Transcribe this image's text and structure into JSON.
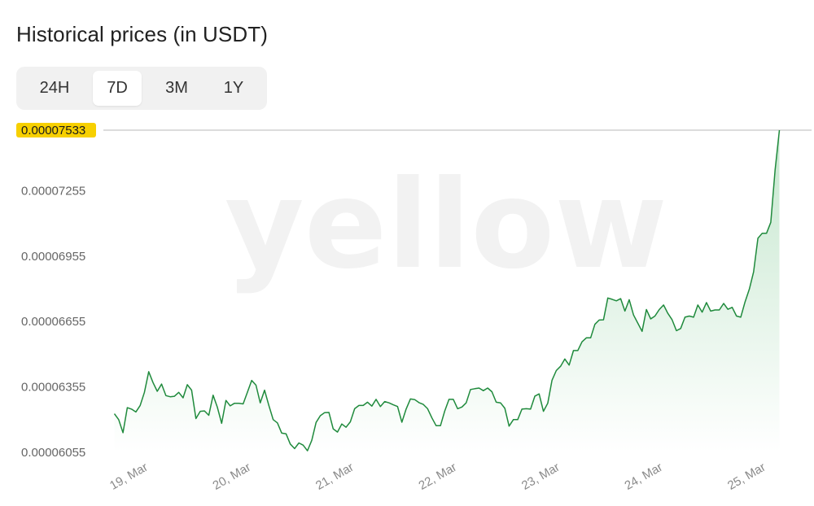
{
  "header": {
    "title": "Historical prices (in USDT)"
  },
  "tabs": [
    {
      "label": "24H",
      "active": false
    },
    {
      "label": "7D",
      "active": true
    },
    {
      "label": "3M",
      "active": false
    },
    {
      "label": "1Y",
      "active": false
    }
  ],
  "colors": {
    "line": "#1f8a3c",
    "fill": "#2fa84f",
    "badge": "#f7d000",
    "watermark": "#f2f2f2"
  },
  "watermark_text": "yellow",
  "chart_data": {
    "type": "area",
    "title": "Historical prices (in USDT)",
    "xlabel": "",
    "ylabel": "",
    "y_ticks": [
      "0.00007255",
      "0.00006955",
      "0.00006655",
      "0.00006355",
      "0.00006055"
    ],
    "x_ticks": [
      {
        "label": "19, Mar",
        "x": 0
      },
      {
        "label": "20, Mar",
        "x": 24
      },
      {
        "label": "21, Mar",
        "x": 48
      },
      {
        "label": "22, Mar",
        "x": 72
      },
      {
        "label": "23, Mar",
        "x": 96
      },
      {
        "label": "24, Mar",
        "x": 120
      },
      {
        "label": "25, Mar",
        "x": 144
      }
    ],
    "ylim": [
      6.055e-05,
      7.533e-05
    ],
    "xlim": [
      -2,
      162.5
    ],
    "current_value": "0.00007533",
    "series": [
      {
        "values": [
          6.232e-05,
          6.205e-05,
          6.145e-05,
          6.26e-05,
          6.253e-05,
          6.24e-05,
          6.27e-05,
          6.33e-05,
          6.425e-05,
          6.375e-05,
          6.335e-05,
          6.368e-05,
          6.315e-05,
          6.31e-05,
          6.312e-05,
          6.33e-05,
          6.305e-05,
          6.365e-05,
          6.34e-05,
          6.21e-05,
          6.243e-05,
          6.245e-05,
          6.225e-05,
          6.317e-05,
          6.262e-05,
          6.188e-05,
          6.293e-05,
          6.268e-05,
          6.28e-05,
          6.28e-05,
          6.277e-05,
          6.33e-05,
          6.385e-05,
          6.363e-05,
          6.282e-05,
          6.34e-05,
          6.27e-05,
          6.205e-05,
          6.19e-05,
          6.143e-05,
          6.14e-05,
          6.093e-05,
          6.072e-05,
          6.098e-05,
          6.088e-05,
          6.062e-05,
          6.11e-05,
          6.192e-05,
          6.223e-05,
          6.237e-05,
          6.238e-05,
          6.163e-05,
          6.148e-05,
          6.185e-05,
          6.17e-05,
          6.195e-05,
          6.255e-05,
          6.27e-05,
          6.27e-05,
          6.285e-05,
          6.267e-05,
          6.298e-05,
          6.265e-05,
          6.288e-05,
          6.282e-05,
          6.273e-05,
          6.265e-05,
          6.193e-05,
          6.253e-05,
          6.3e-05,
          6.297e-05,
          6.283e-05,
          6.275e-05,
          6.255e-05,
          6.213e-05,
          6.177e-05,
          6.177e-05,
          6.245e-05,
          6.298e-05,
          6.298e-05,
          6.255e-05,
          6.263e-05,
          6.282e-05,
          6.343e-05,
          6.347e-05,
          6.35e-05,
          6.338e-05,
          6.35e-05,
          6.333e-05,
          6.285e-05,
          6.282e-05,
          6.257e-05,
          6.175e-05,
          6.205e-05,
          6.205e-05,
          6.253e-05,
          6.255e-05,
          6.253e-05,
          6.313e-05,
          6.323e-05,
          6.243e-05,
          6.28e-05,
          6.385e-05,
          6.43e-05,
          6.45e-05,
          6.483e-05,
          6.455e-05,
          6.522e-05,
          6.522e-05,
          6.562e-05,
          6.58e-05,
          6.58e-05,
          6.642e-05,
          6.662e-05,
          6.663e-05,
          6.763e-05,
          6.757e-05,
          6.75e-05,
          6.76e-05,
          6.703e-05,
          6.755e-05,
          6.685e-05,
          6.648e-05,
          6.61e-05,
          6.71e-05,
          6.667e-05,
          6.68e-05,
          6.71e-05,
          6.731e-05,
          6.693e-05,
          6.663e-05,
          6.613e-05,
          6.623e-05,
          6.675e-05,
          6.68e-05,
          6.675e-05,
          6.731e-05,
          6.698e-05,
          6.742e-05,
          6.703e-05,
          6.708e-05,
          6.708e-05,
          6.738e-05,
          6.711e-05,
          6.72e-05,
          6.68e-05,
          6.675e-05,
          6.745e-05,
          6.804e-05,
          6.883e-05,
          7.037e-05,
          7.06e-05,
          7.06e-05,
          7.11e-05,
          7.35e-05,
          7.533e-05
        ]
      }
    ]
  }
}
